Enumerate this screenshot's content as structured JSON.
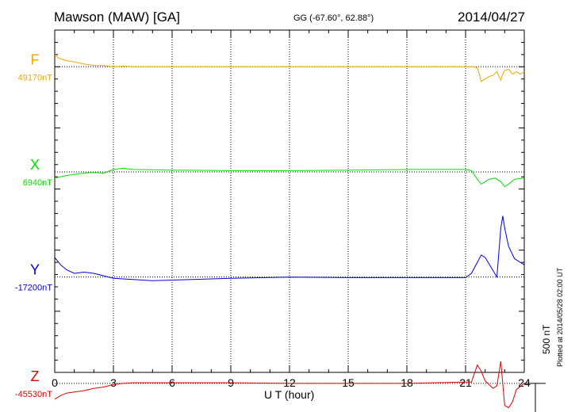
{
  "chart_data": {
    "type": "line",
    "title": "Mawson (MAW)  [GA]",
    "subtitle": "GG (-67.60°,  62.88°)",
    "date": "2014/04/27",
    "xlabel": "U T (hour)",
    "xlim": [
      0,
      24
    ],
    "xticks": [
      0,
      3,
      6,
      9,
      12,
      15,
      18,
      21,
      24
    ],
    "xtick_labels": [
      "0",
      "3",
      "6",
      "9",
      "12",
      "15",
      "18",
      "21",
      "24"
    ],
    "vertical_grid_hours": [
      3,
      6,
      9,
      12,
      15,
      18,
      21
    ],
    "y_range_nT": [
      -1000,
      1800
    ],
    "scale_bar_label": "500 nT",
    "scale_bar_nT": 500,
    "plotted_note": "Plotted at 2014/05/28 02:00 UT",
    "series": [
      {
        "name": "F",
        "baseline_label": "49170nT",
        "color": "#f0a800",
        "offset_nT": 1500,
        "points": [
          [
            0,
            100
          ],
          [
            0.2,
            70
          ],
          [
            0.4,
            60
          ],
          [
            0.6,
            50
          ],
          [
            0.8,
            45
          ],
          [
            1,
            40
          ],
          [
            1.3,
            30
          ],
          [
            1.6,
            20
          ],
          [
            2,
            10
          ],
          [
            2.5,
            10
          ],
          [
            3,
            0
          ],
          [
            3.5,
            5
          ],
          [
            4,
            0
          ],
          [
            6,
            0
          ],
          [
            9,
            0
          ],
          [
            12,
            0
          ],
          [
            15,
            0
          ],
          [
            18,
            0
          ],
          [
            21,
            0
          ],
          [
            21.4,
            0
          ],
          [
            21.6,
            -10
          ],
          [
            21.7,
            -60
          ],
          [
            21.8,
            -120
          ],
          [
            22,
            -100
          ],
          [
            22.2,
            -80
          ],
          [
            22.4,
            -70
          ],
          [
            22.6,
            -40
          ],
          [
            22.8,
            -110
          ],
          [
            22.9,
            -60
          ],
          [
            23,
            -30
          ],
          [
            23.2,
            -20
          ],
          [
            23.4,
            -60
          ],
          [
            23.6,
            -40
          ],
          [
            23.8,
            -60
          ],
          [
            24,
            -40
          ]
        ]
      },
      {
        "name": "X",
        "baseline_label": "6940nT",
        "color": "#00e000",
        "offset_nT": 640,
        "points": [
          [
            0,
            -50
          ],
          [
            0.3,
            -40
          ],
          [
            0.6,
            -30
          ],
          [
            1,
            -20
          ],
          [
            1.5,
            -10
          ],
          [
            2,
            -5
          ],
          [
            2.5,
            -10
          ],
          [
            3,
            20
          ],
          [
            3.5,
            30
          ],
          [
            4,
            20
          ],
          [
            6,
            15
          ],
          [
            9,
            10
          ],
          [
            12,
            10
          ],
          [
            15,
            15
          ],
          [
            18,
            20
          ],
          [
            21,
            20
          ],
          [
            21.3,
            10
          ],
          [
            21.6,
            -60
          ],
          [
            21.8,
            -100
          ],
          [
            22,
            -80
          ],
          [
            22.2,
            -60
          ],
          [
            22.5,
            -50
          ],
          [
            22.8,
            -80
          ],
          [
            23,
            -120
          ],
          [
            23.2,
            -100
          ],
          [
            23.5,
            -60
          ],
          [
            24,
            -50
          ]
        ]
      },
      {
        "name": "Y",
        "baseline_label": "-17200nT",
        "color": "#0000e0",
        "offset_nT": -220,
        "points": [
          [
            0,
            160
          ],
          [
            0.3,
            100
          ],
          [
            0.6,
            60
          ],
          [
            1,
            30
          ],
          [
            1.5,
            40
          ],
          [
            2,
            30
          ],
          [
            2.5,
            10
          ],
          [
            3,
            -10
          ],
          [
            4,
            -20
          ],
          [
            5,
            -30
          ],
          [
            6,
            -25
          ],
          [
            9,
            -10
          ],
          [
            12,
            0
          ],
          [
            15,
            -5
          ],
          [
            18,
            -5
          ],
          [
            21,
            -5
          ],
          [
            21.3,
            30
          ],
          [
            21.6,
            120
          ],
          [
            21.8,
            180
          ],
          [
            22,
            160
          ],
          [
            22.3,
            80
          ],
          [
            22.6,
            0
          ],
          [
            22.8,
            400
          ],
          [
            22.9,
            500
          ],
          [
            23,
            400
          ],
          [
            23.2,
            250
          ],
          [
            23.5,
            150
          ],
          [
            24,
            100
          ]
        ]
      },
      {
        "name": "Z",
        "baseline_label": "-45530nT",
        "color": "#e00000",
        "offset_nT": -1090,
        "points": [
          [
            0,
            -130
          ],
          [
            0.3,
            -100
          ],
          [
            0.6,
            -80
          ],
          [
            1,
            -70
          ],
          [
            1.5,
            -60
          ],
          [
            2,
            -40
          ],
          [
            2.5,
            -30
          ],
          [
            3,
            -10
          ],
          [
            3.5,
            0
          ],
          [
            4,
            5
          ],
          [
            6,
            5
          ],
          [
            9,
            5
          ],
          [
            12,
            0
          ],
          [
            15,
            0
          ],
          [
            18,
            0
          ],
          [
            21,
            10
          ],
          [
            21.3,
            10
          ],
          [
            21.6,
            150
          ],
          [
            21.8,
            100
          ],
          [
            22,
            20
          ],
          [
            22.2,
            -10
          ],
          [
            22.4,
            -40
          ],
          [
            22.6,
            -20
          ],
          [
            22.8,
            180
          ],
          [
            23,
            -180
          ],
          [
            23.2,
            -200
          ],
          [
            23.4,
            -150
          ],
          [
            23.6,
            -50
          ],
          [
            24,
            0
          ]
        ]
      }
    ]
  }
}
